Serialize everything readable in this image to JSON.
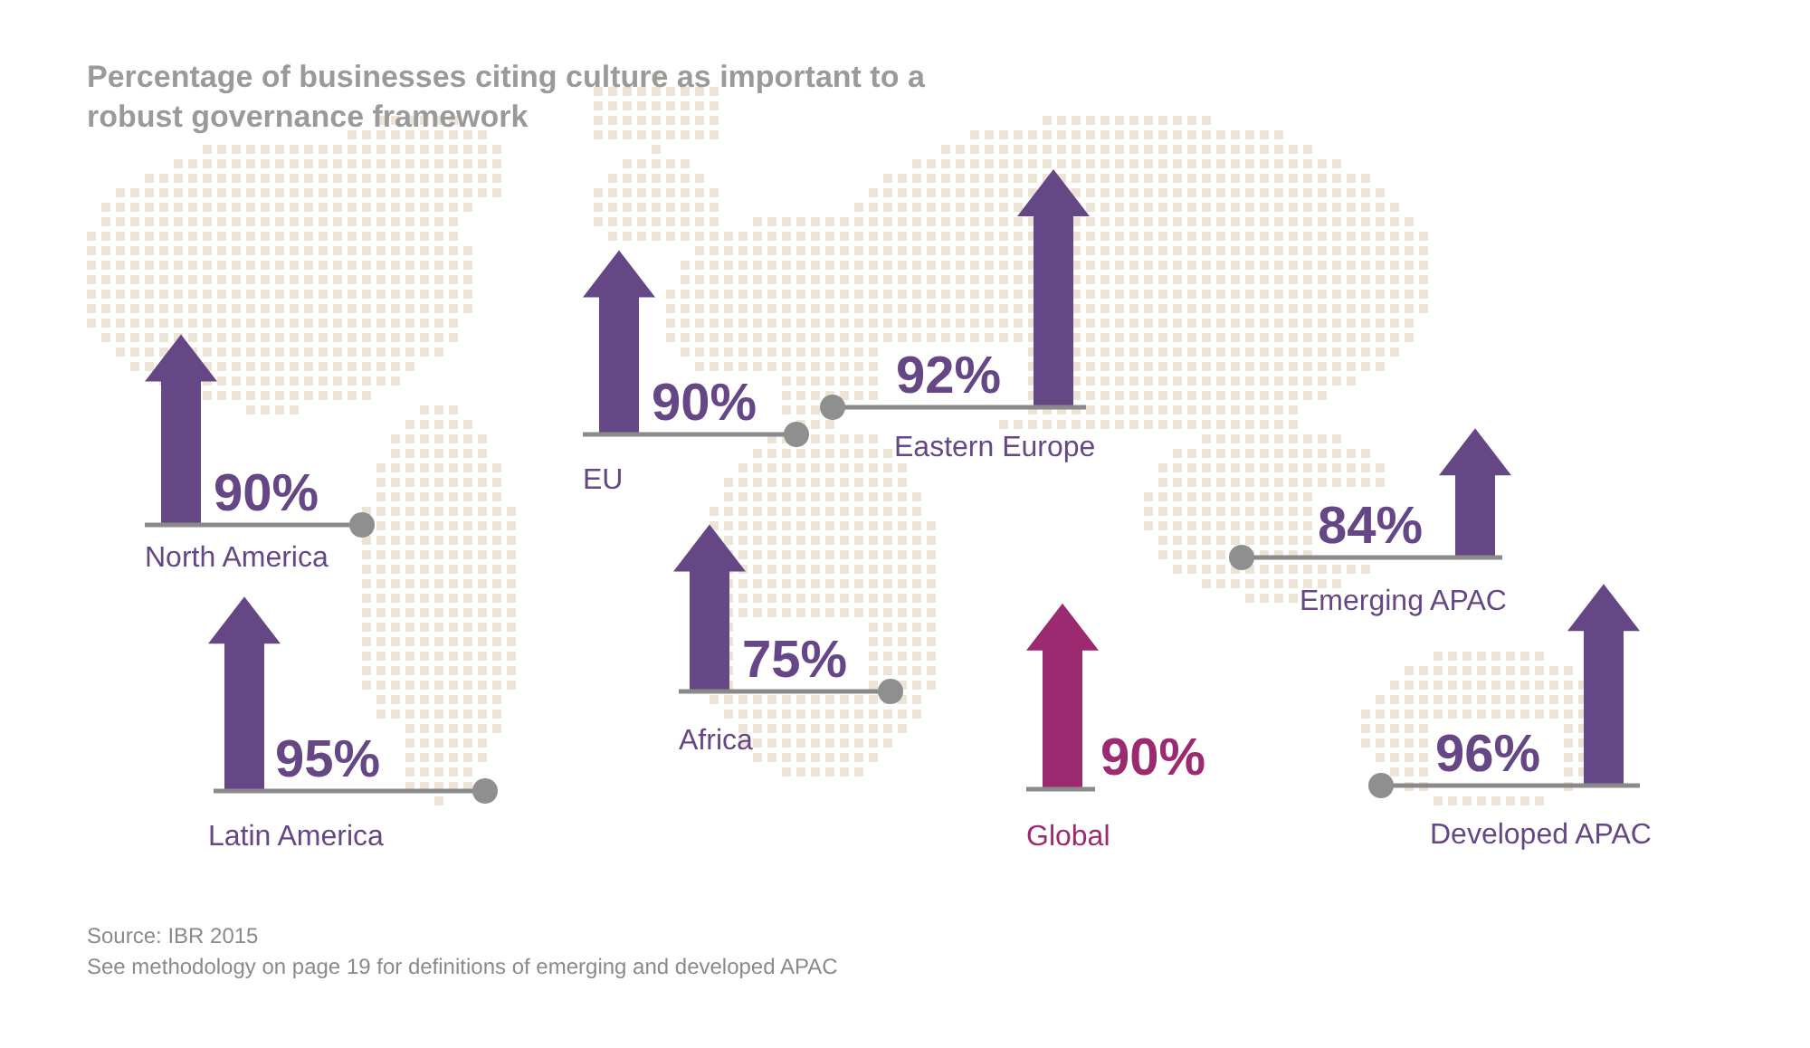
{
  "chart_data": {
    "type": "other",
    "title": "Percentage of businesses citing culture as important to a robust governance framework",
    "categories": [
      "North America",
      "Latin America",
      "EU",
      "Eastern Europe",
      "Africa",
      "Global",
      "Emerging APAC",
      "Developed APAC"
    ],
    "values": [
      90,
      95,
      90,
      92,
      75,
      90,
      84,
      96
    ],
    "value_labels": [
      "90%",
      "95%",
      "90%",
      "92%",
      "75%",
      "90%",
      "84%",
      "96%"
    ],
    "colors": [
      "#664785",
      "#664785",
      "#664785",
      "#664785",
      "#664785",
      "#9b2a70",
      "#664785",
      "#664785"
    ],
    "data_labels": true,
    "annotations": [
      "Source: IBR 2015",
      "See methodology on page 19 for definitions of emerging and developed APAC"
    ]
  }
}
